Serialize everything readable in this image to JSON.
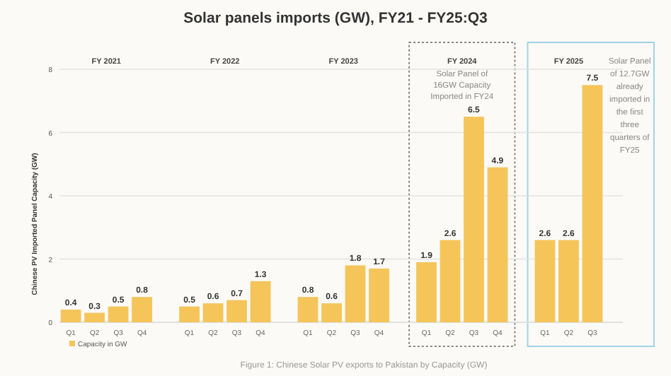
{
  "chart_data": {
    "type": "bar",
    "title": "Solar panels imports (GW), FY21 - FY25:Q3",
    "ylabel": "Chinese PV Imported Panel Capacity (GW)",
    "categories": [
      "Q1",
      "Q2",
      "Q3",
      "Q4",
      null,
      "Q1",
      "Q2",
      "Q3",
      "Q4",
      null,
      "Q1",
      "Q2",
      "Q3",
      "Q4",
      null,
      "Q1",
      "Q2",
      "Q3",
      "Q4",
      null,
      "Q1",
      "Q2",
      "Q3",
      null,
      null
    ],
    "series": [
      {
        "name": "Capacity in GW",
        "color": "#f5c55a",
        "values": [
          0.4,
          0.3,
          0.5,
          0.8,
          null,
          0.5,
          0.6,
          0.7,
          1.3,
          null,
          0.8,
          0.6,
          1.8,
          1.7,
          null,
          1.9,
          2.6,
          6.5,
          4.9,
          null,
          2.6,
          2.6,
          7.5,
          null,
          null
        ]
      }
    ],
    "ylim": [
      0,
      8
    ],
    "yticks": [
      0,
      2,
      4,
      6,
      8
    ],
    "grid": "y",
    "data_labels": true,
    "legend": "bottom left",
    "annotations": [
      "FY 2021",
      "FY 2022",
      "FY 2023",
      "FY 2024",
      "FY 2025",
      "Solar Panel of 16GW Capacity Imported in FY24",
      "Solar Panel of 12.7GW already imported in the first three quarters of FY25",
      "Figure 1: Chinese Solar PV exports to Pakistan by Capacity (GW)"
    ]
  }
}
